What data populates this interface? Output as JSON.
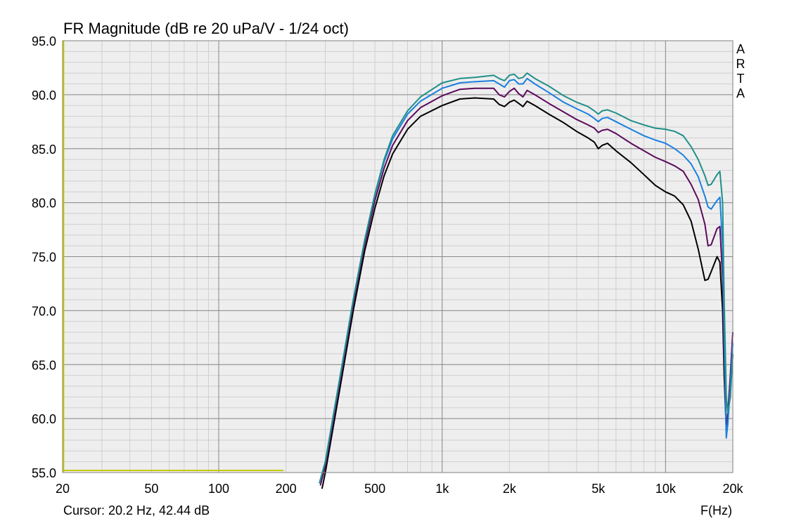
{
  "chart_data": {
    "type": "line",
    "title": "FR Magnitude (dB re 20 uPa/V - 1/24 oct)",
    "xlabel": "F(Hz)",
    "ylabel": "",
    "x_scale": "log",
    "xlim": [
      20,
      20000
    ],
    "ylim": [
      55,
      95
    ],
    "grid": true,
    "x_ticks": [
      20,
      50,
      100,
      200,
      500,
      1000,
      2000,
      5000,
      10000,
      20000
    ],
    "x_tick_labels": [
      "20",
      "50",
      "100",
      "200",
      "500",
      "1k",
      "2k",
      "5k",
      "10k",
      "20k"
    ],
    "y_ticks": [
      55,
      60,
      65,
      70,
      75,
      80,
      85,
      90,
      95
    ],
    "y_tick_labels": [
      "55.0",
      "60.0",
      "65.0",
      "70.0",
      "75.0",
      "80.0",
      "85.0",
      "90.0",
      "95.0"
    ],
    "brand_text": "ARTA",
    "cursor_text": "Cursor: 20.2 Hz, 42.44 dB",
    "cursor": {
      "x": 20.2,
      "y": 42.44,
      "color": "#c8c800",
      "x_max": 195
    },
    "series": [
      {
        "color": "#000000",
        "x": [
          290,
          300,
          350,
          400,
          450,
          500,
          550,
          600,
          700,
          800,
          1000,
          1200,
          1400,
          1700,
          1800,
          1900,
          2000,
          2100,
          2200,
          2300,
          2400,
          2600,
          3000,
          3500,
          4000,
          4500,
          4800,
          5000,
          5200,
          5500,
          6000,
          7000,
          8000,
          9000,
          10000,
          10500,
          11000,
          12000,
          13000,
          14000,
          15000,
          15500,
          16000,
          17000,
          17500,
          18000,
          18300,
          18700,
          19000,
          19500,
          20000
        ],
        "y": [
          53.5,
          55.0,
          63.0,
          70.0,
          75.5,
          79.5,
          82.5,
          84.5,
          86.8,
          88.0,
          89.0,
          89.6,
          89.7,
          89.6,
          89.1,
          88.9,
          89.3,
          89.5,
          89.2,
          88.9,
          89.4,
          89.0,
          88.2,
          87.4,
          86.6,
          86.0,
          85.6,
          85.0,
          85.3,
          85.5,
          84.8,
          83.7,
          82.6,
          81.6,
          81.0,
          80.8,
          80.6,
          79.8,
          78.3,
          75.7,
          72.8,
          72.9,
          73.6,
          75.0,
          74.5,
          70.0,
          64.0,
          59.0,
          60.5,
          63.0,
          66.0
        ]
      },
      {
        "color": "#5c0a5c",
        "x": [
          285,
          300,
          350,
          400,
          450,
          500,
          550,
          600,
          700,
          800,
          1000,
          1200,
          1400,
          1700,
          1800,
          1900,
          2000,
          2100,
          2200,
          2300,
          2400,
          2600,
          3000,
          3500,
          4000,
          4500,
          4800,
          5000,
          5200,
          5500,
          6000,
          7000,
          8000,
          9000,
          10000,
          11000,
          12000,
          13000,
          14000,
          15000,
          15500,
          16000,
          17000,
          17500,
          18000,
          18300,
          18700,
          19000,
          19500,
          20000
        ],
        "y": [
          53.8,
          55.6,
          63.6,
          70.6,
          76.1,
          80.2,
          83.2,
          85.3,
          87.6,
          88.8,
          89.9,
          90.5,
          90.6,
          90.6,
          90.0,
          89.8,
          90.3,
          90.6,
          90.1,
          89.8,
          90.4,
          90.0,
          89.2,
          88.4,
          87.7,
          87.2,
          86.9,
          86.5,
          86.7,
          86.8,
          86.4,
          85.5,
          84.8,
          84.2,
          83.8,
          83.4,
          82.9,
          81.7,
          80.3,
          78.0,
          76.0,
          76.1,
          77.6,
          77.8,
          73.0,
          66.0,
          59.0,
          60.5,
          64.0,
          68.0
        ]
      },
      {
        "color": "#1a7fe0",
        "x": [
          282,
          300,
          350,
          400,
          450,
          500,
          550,
          600,
          700,
          800,
          1000,
          1200,
          1400,
          1700,
          1800,
          1900,
          2000,
          2100,
          2200,
          2300,
          2400,
          2600,
          3000,
          3500,
          4000,
          4500,
          4800,
          5000,
          5200,
          5500,
          6000,
          7000,
          8000,
          9000,
          10000,
          11000,
          12000,
          13000,
          14000,
          15000,
          15500,
          16000,
          17000,
          17500,
          18000,
          18300,
          18700,
          19000,
          19500,
          20000
        ],
        "y": [
          54.0,
          56.0,
          64.0,
          71.0,
          76.5,
          80.7,
          83.8,
          85.9,
          88.2,
          89.4,
          90.6,
          91.1,
          91.2,
          91.3,
          91.0,
          90.7,
          91.3,
          91.4,
          91.0,
          91.0,
          91.5,
          91.0,
          90.2,
          89.3,
          88.7,
          88.2,
          87.8,
          87.5,
          87.8,
          87.9,
          87.5,
          86.8,
          86.2,
          85.8,
          85.5,
          85.0,
          84.4,
          83.6,
          82.4,
          80.6,
          79.6,
          79.4,
          80.2,
          80.5,
          76.0,
          68.0,
          58.2,
          59.5,
          63.0,
          67.0
        ]
      },
      {
        "color": "#1f8f8a",
        "x": [
          282,
          300,
          350,
          400,
          450,
          500,
          550,
          600,
          700,
          800,
          1000,
          1200,
          1400,
          1700,
          1800,
          1900,
          2000,
          2100,
          2200,
          2300,
          2400,
          2600,
          3000,
          3500,
          4000,
          4500,
          4800,
          5000,
          5200,
          5500,
          6000,
          7000,
          8000,
          9000,
          10000,
          11000,
          12000,
          13000,
          14000,
          15000,
          15500,
          16000,
          17000,
          17500,
          18000,
          18300,
          18700,
          19000,
          19500,
          20000
        ],
        "y": [
          54.0,
          56.0,
          64.0,
          71.0,
          76.5,
          80.8,
          84.0,
          86.2,
          88.5,
          89.8,
          91.1,
          91.5,
          91.6,
          91.8,
          91.5,
          91.3,
          91.8,
          91.9,
          91.5,
          91.6,
          92.0,
          91.5,
          90.8,
          89.9,
          89.3,
          88.9,
          88.5,
          88.2,
          88.5,
          88.6,
          88.3,
          87.6,
          87.2,
          86.9,
          86.8,
          86.6,
          86.2,
          85.2,
          84.0,
          82.5,
          81.6,
          81.7,
          82.6,
          82.9,
          80.0,
          71.0,
          62.0,
          60.5,
          62.0,
          66.0
        ]
      }
    ]
  }
}
